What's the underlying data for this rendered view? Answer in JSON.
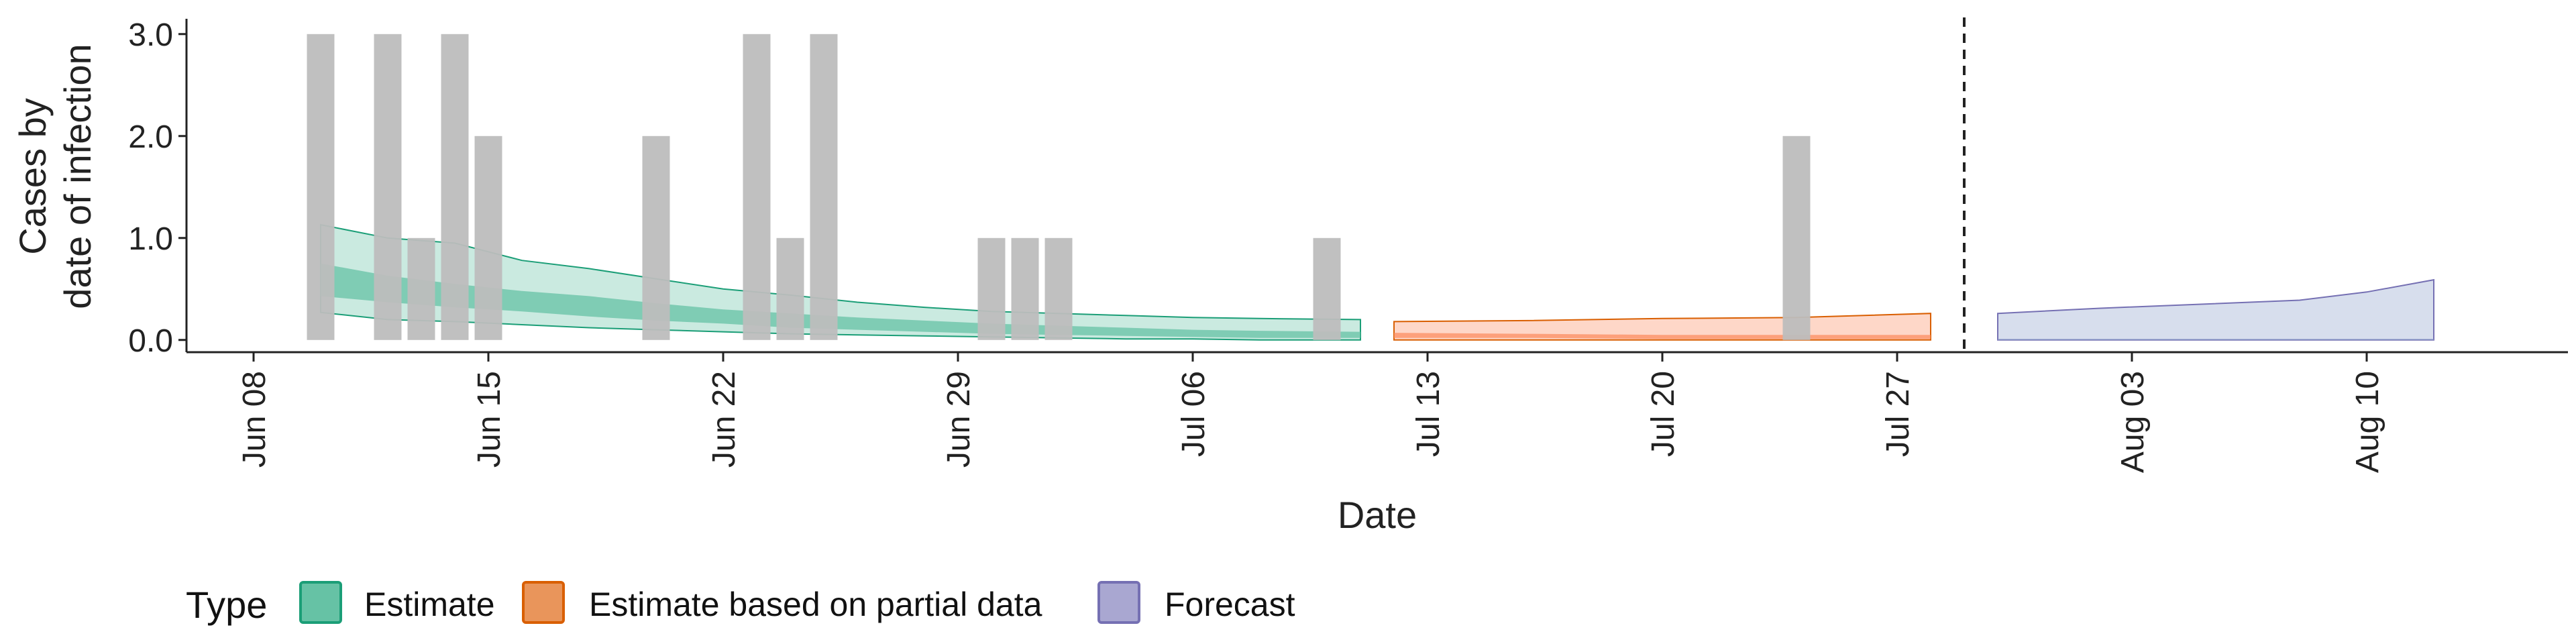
{
  "chart_data": {
    "type": "bar",
    "title": "",
    "xlabel": "Date",
    "ylabel": [
      "Cases by",
      "date of infection"
    ],
    "ylim": [
      -0.12,
      3.15
    ],
    "yticks": [
      0.0,
      1.0,
      2.0,
      3.0
    ],
    "ytick_labels": [
      "0.0",
      "1.0",
      "2.0",
      "3.0"
    ],
    "xticks": [
      "2020-06-08",
      "2020-06-15",
      "2020-06-22",
      "2020-06-29",
      "2020-07-06",
      "2020-07-13",
      "2020-07-20",
      "2020-07-27",
      "2020-08-03",
      "2020-08-10"
    ],
    "xtick_labels": [
      "Jun 08",
      "Jun 15",
      "Jun 22",
      "Jun 29",
      "Jul 06",
      "Jul 13",
      "Jul 20",
      "Jul 27",
      "Aug 03",
      "Aug 10"
    ],
    "xlim": [
      "2020-06-06",
      "2020-08-16"
    ],
    "forecast_line_date": "2020-07-29",
    "bar_color": "#bdbdbd",
    "bars": [
      {
        "date": "2020-06-10",
        "value": 3
      },
      {
        "date": "2020-06-12",
        "value": 3
      },
      {
        "date": "2020-06-13",
        "value": 1
      },
      {
        "date": "2020-06-14",
        "value": 3
      },
      {
        "date": "2020-06-15",
        "value": 2
      },
      {
        "date": "2020-06-20",
        "value": 2
      },
      {
        "date": "2020-06-23",
        "value": 3
      },
      {
        "date": "2020-06-24",
        "value": 1
      },
      {
        "date": "2020-06-25",
        "value": 3
      },
      {
        "date": "2020-06-30",
        "value": 1
      },
      {
        "date": "2020-07-01",
        "value": 1
      },
      {
        "date": "2020-07-02",
        "value": 1
      },
      {
        "date": "2020-07-10",
        "value": 1
      },
      {
        "date": "2020-07-24",
        "value": 2
      }
    ],
    "series": [
      {
        "name": "Estimate",
        "color": "#1b9e77",
        "fill": "#66c2a5",
        "dates": [
          "2020-06-10",
          "2020-06-12",
          "2020-06-14",
          "2020-06-16",
          "2020-06-18",
          "2020-06-20",
          "2020-06-22",
          "2020-06-24",
          "2020-06-26",
          "2020-06-28",
          "2020-06-30",
          "2020-07-02",
          "2020-07-04",
          "2020-07-06",
          "2020-07-08",
          "2020-07-11"
        ],
        "outer_upper": [
          1.13,
          1.0,
          0.95,
          0.78,
          0.7,
          0.6,
          0.5,
          0.44,
          0.37,
          0.32,
          0.28,
          0.26,
          0.24,
          0.22,
          0.21,
          0.2
        ],
        "inner_upper": [
          0.75,
          0.63,
          0.55,
          0.48,
          0.43,
          0.36,
          0.3,
          0.26,
          0.22,
          0.19,
          0.16,
          0.14,
          0.12,
          0.1,
          0.09,
          0.08
        ],
        "inner_lower": [
          0.43,
          0.37,
          0.32,
          0.28,
          0.23,
          0.19,
          0.16,
          0.12,
          0.1,
          0.08,
          0.06,
          0.05,
          0.04,
          0.03,
          0.02,
          0.02
        ],
        "outer_lower": [
          0.27,
          0.2,
          0.18,
          0.15,
          0.12,
          0.1,
          0.08,
          0.06,
          0.05,
          0.04,
          0.03,
          0.02,
          0.01,
          0.01,
          0.0,
          0.0
        ]
      },
      {
        "name": "Estimate based on partial data",
        "color": "#d95f02",
        "fill": "#fc8d62",
        "dates": [
          "2020-07-12",
          "2020-07-16",
          "2020-07-20",
          "2020-07-24",
          "2020-07-28"
        ],
        "outer_upper": [
          0.18,
          0.19,
          0.21,
          0.22,
          0.26
        ],
        "inner_upper": [
          0.07,
          0.06,
          0.05,
          0.05,
          0.05
        ],
        "inner_lower": [
          0.02,
          0.02,
          0.01,
          0.01,
          0.01
        ],
        "outer_lower": [
          0.0,
          0.0,
          0.0,
          0.0,
          0.0
        ]
      },
      {
        "name": "Forecast",
        "color": "#7570b3",
        "fill": "#8da0cb",
        "dates": [
          "2020-07-30",
          "2020-08-02",
          "2020-08-05",
          "2020-08-08",
          "2020-08-10",
          "2020-08-12"
        ],
        "outer_upper": [
          0.26,
          0.31,
          0.35,
          0.39,
          0.47,
          0.59
        ],
        "inner_upper": [
          0.01,
          0.01,
          0.01,
          0.01,
          0.01,
          0.01
        ],
        "inner_lower": [
          0.0,
          0.0,
          0.0,
          0.0,
          0.0,
          0.0
        ],
        "outer_lower": [
          0.0,
          0.0,
          0.0,
          0.0,
          0.0,
          0.0
        ]
      }
    ],
    "legend": {
      "title": "Type",
      "position": "bottom-left",
      "entries": [
        {
          "label": "Estimate",
          "fill": "#66c2a5",
          "border": "#1b9e77"
        },
        {
          "label": "Estimate based on partial data",
          "fill": "#e9955b",
          "border": "#d95f02"
        },
        {
          "label": "Forecast",
          "fill": "#a9a7d1",
          "border": "#7570b3"
        }
      ]
    }
  }
}
